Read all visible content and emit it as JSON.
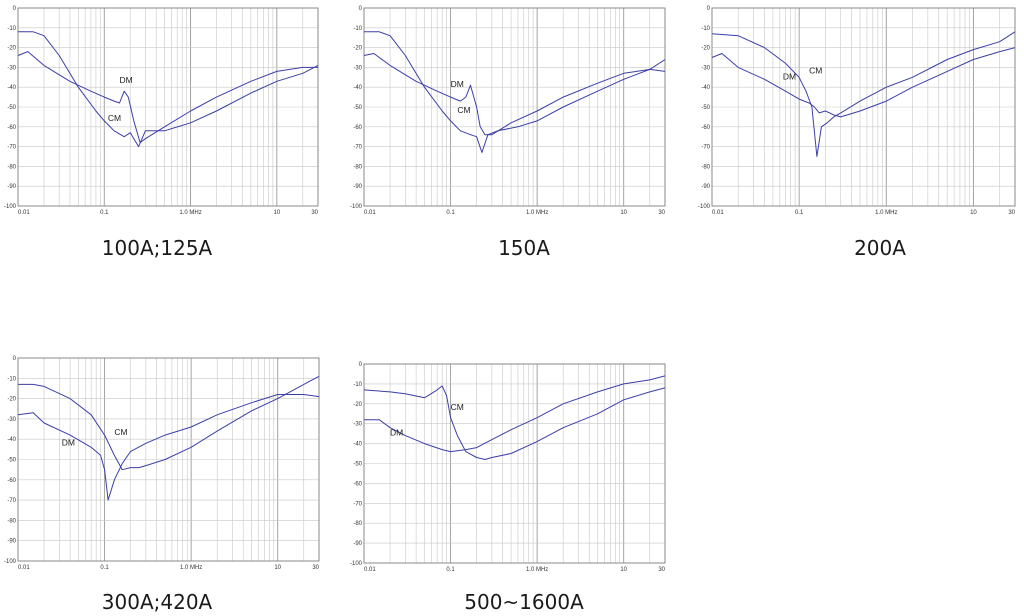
{
  "colors": {
    "curve": "#3b3fa8",
    "grid": "#c8c8c8",
    "frame": "#8a8a8a"
  },
  "chart_data": [
    {
      "type": "line",
      "caption": "100A;125A",
      "x_scale": "log",
      "xlim": [
        0.01,
        30
      ],
      "ylim": [
        -100,
        0
      ],
      "x_tick_labels": [
        "0.01",
        "0.1",
        "1.0 MHz",
        "10",
        "30"
      ],
      "y_tick_labels": [
        "0",
        "-10",
        "-20",
        "-30",
        "-40",
        "-50",
        "-60",
        "-70",
        "-80",
        "-90",
        "-100"
      ],
      "grid": true,
      "series": [
        {
          "name": "DM",
          "x": [
            0.01,
            0.013,
            0.02,
            0.04,
            0.07,
            0.1,
            0.13,
            0.15,
            0.17,
            0.19,
            0.22,
            0.26,
            0.3,
            0.5,
            1,
            2,
            5,
            10,
            20,
            30
          ],
          "y": [
            -24,
            -22,
            -29,
            -37,
            -42,
            -45,
            -47,
            -48,
            -42,
            -45,
            -57,
            -68,
            -66,
            -60,
            -52,
            -45,
            -37,
            -32,
            -30,
            -30
          ]
        },
        {
          "name": "CM",
          "x": [
            0.01,
            0.015,
            0.02,
            0.03,
            0.05,
            0.08,
            0.1,
            0.13,
            0.17,
            0.2,
            0.25,
            0.3,
            0.5,
            1,
            2,
            5,
            10,
            20,
            30
          ],
          "y": [
            -12,
            -12,
            -14,
            -24,
            -40,
            -52,
            -57,
            -62,
            -65,
            -63,
            -70,
            -62,
            -62,
            -58,
            -52,
            -43,
            -37,
            -33,
            -29
          ]
        }
      ],
      "labels": [
        {
          "text": "DM",
          "x": 0.15,
          "y": -38
        },
        {
          "text": "CM",
          "x": 0.11,
          "y": -57
        }
      ]
    },
    {
      "type": "line",
      "caption": "150A",
      "x_scale": "log",
      "xlim": [
        0.01,
        30
      ],
      "ylim": [
        -100,
        0
      ],
      "x_tick_labels": [
        "0.01",
        "0.1",
        "1.0 MHz",
        "10",
        "30"
      ],
      "y_tick_labels": [
        "0",
        "-10",
        "-20",
        "-30",
        "-40",
        "-50",
        "-60",
        "-70",
        "-80",
        "-90",
        "-100"
      ],
      "grid": true,
      "series": [
        {
          "name": "DM",
          "x": [
            0.01,
            0.013,
            0.02,
            0.04,
            0.07,
            0.1,
            0.13,
            0.15,
            0.17,
            0.2,
            0.22,
            0.25,
            0.3,
            0.5,
            1,
            2,
            5,
            10,
            20,
            30
          ],
          "y": [
            -24,
            -23,
            -29,
            -37,
            -42,
            -45,
            -47,
            -45,
            -39,
            -50,
            -60,
            -64,
            -64,
            -58,
            -52,
            -45,
            -38,
            -33,
            -31,
            -32
          ]
        },
        {
          "name": "CM",
          "x": [
            0.01,
            0.015,
            0.02,
            0.03,
            0.05,
            0.08,
            0.1,
            0.13,
            0.17,
            0.2,
            0.23,
            0.27,
            0.35,
            0.6,
            1,
            2,
            5,
            10,
            20,
            30
          ],
          "y": [
            -12,
            -12,
            -14,
            -24,
            -40,
            -52,
            -57,
            -62,
            -64,
            -65,
            -73,
            -64,
            -62,
            -60,
            -57,
            -50,
            -42,
            -36,
            -31,
            -26
          ]
        }
      ],
      "labels": [
        {
          "text": "DM",
          "x": 0.1,
          "y": -40
        },
        {
          "text": "CM",
          "x": 0.12,
          "y": -53
        }
      ]
    },
    {
      "type": "line",
      "caption": "200A",
      "x_scale": "log",
      "xlim": [
        0.01,
        30
      ],
      "ylim": [
        -100,
        0
      ],
      "x_tick_labels": [
        "0.01",
        "0.1",
        "1.0 MHz",
        "10",
        "30"
      ],
      "y_tick_labels": [
        "0",
        "-10",
        "-20",
        "-30",
        "-40",
        "-50",
        "-60",
        "-70",
        "-80",
        "-90",
        "-100"
      ],
      "grid": true,
      "series": [
        {
          "name": "DM",
          "x": [
            0.01,
            0.013,
            0.02,
            0.04,
            0.07,
            0.1,
            0.13,
            0.15,
            0.17,
            0.2,
            0.25,
            0.3,
            0.5,
            1,
            2,
            5,
            10,
            20,
            30
          ],
          "y": [
            -25,
            -23,
            -30,
            -36,
            -42,
            -46,
            -48,
            -50,
            -53,
            -52,
            -54,
            -55,
            -52,
            -47,
            -40,
            -32,
            -26,
            -22,
            -20
          ]
        },
        {
          "name": "CM",
          "x": [
            0.01,
            0.02,
            0.04,
            0.07,
            0.1,
            0.12,
            0.14,
            0.16,
            0.18,
            0.21,
            0.25,
            0.3,
            0.5,
            1,
            2,
            5,
            10,
            20,
            30
          ],
          "y": [
            -13,
            -14,
            -20,
            -28,
            -35,
            -42,
            -50,
            -75,
            -60,
            -58,
            -55,
            -53,
            -47,
            -40,
            -35,
            -26,
            -21,
            -17,
            -12
          ]
        }
      ],
      "labels": [
        {
          "text": "DM",
          "x": 0.065,
          "y": -36
        },
        {
          "text": "CM",
          "x": 0.13,
          "y": -33
        }
      ]
    },
    {
      "type": "line",
      "caption": "300A;420A",
      "x_scale": "log",
      "xlim": [
        0.01,
        30
      ],
      "ylim": [
        -100,
        0
      ],
      "x_tick_labels": [
        "0.01",
        "0.1",
        "1.0 MHz",
        "10",
        "30"
      ],
      "y_tick_labels": [
        "0",
        "-10",
        "-20",
        "-30",
        "-40",
        "-50",
        "-60",
        "-70",
        "-80",
        "-90",
        "-100"
      ],
      "grid": true,
      "series": [
        {
          "name": "DM",
          "x": [
            0.01,
            0.015,
            0.02,
            0.04,
            0.07,
            0.09,
            0.1,
            0.11,
            0.13,
            0.16,
            0.2,
            0.3,
            0.5,
            1,
            2,
            5,
            10,
            20,
            30
          ],
          "y": [
            -28,
            -27,
            -32,
            -38,
            -44,
            -48,
            -55,
            -70,
            -60,
            -52,
            -46,
            -42,
            -38,
            -34,
            -28,
            -22,
            -18,
            -18,
            -19
          ]
        },
        {
          "name": "CM",
          "x": [
            0.01,
            0.015,
            0.02,
            0.04,
            0.07,
            0.1,
            0.13,
            0.16,
            0.2,
            0.25,
            0.3,
            0.5,
            1,
            2,
            5,
            10,
            20,
            30
          ],
          "y": [
            -13,
            -13,
            -14,
            -20,
            -28,
            -38,
            -48,
            -55,
            -54,
            -54,
            -53,
            -50,
            -44,
            -36,
            -26,
            -20,
            -13,
            -9
          ]
        }
      ],
      "labels": [
        {
          "text": "DM",
          "x": 0.032,
          "y": -43
        },
        {
          "text": "CM",
          "x": 0.13,
          "y": -38
        }
      ]
    },
    {
      "type": "line",
      "caption": "500~1600A",
      "x_scale": "log",
      "xlim": [
        0.01,
        30
      ],
      "ylim": [
        -100,
        0
      ],
      "x_tick_labels": [
        "0.01",
        "0.1",
        "1.0 MHz",
        "10",
        "30"
      ],
      "y_tick_labels": [
        "0",
        "-10",
        "-20",
        "-30",
        "-40",
        "-50",
        "-60",
        "-70",
        "-80",
        "-90",
        "-100"
      ],
      "grid": true,
      "series": [
        {
          "name": "DM",
          "x": [
            0.01,
            0.015,
            0.02,
            0.03,
            0.05,
            0.08,
            0.1,
            0.15,
            0.2,
            0.3,
            0.5,
            1,
            2,
            5,
            10,
            20,
            30
          ],
          "y": [
            -28,
            -28,
            -32,
            -36,
            -40,
            -43,
            -44,
            -43,
            -42,
            -38,
            -33,
            -27,
            -20,
            -14,
            -10,
            -8,
            -6
          ]
        },
        {
          "name": "CM",
          "x": [
            0.01,
            0.02,
            0.03,
            0.05,
            0.07,
            0.08,
            0.09,
            0.1,
            0.12,
            0.15,
            0.2,
            0.25,
            0.3,
            0.5,
            1,
            2,
            5,
            10,
            20,
            30
          ],
          "y": [
            -13,
            -14,
            -15,
            -17,
            -13,
            -11,
            -16,
            -27,
            -36,
            -44,
            -47,
            -48,
            -47,
            -45,
            -39,
            -32,
            -25,
            -18,
            -14,
            -12
          ]
        }
      ],
      "labels": [
        {
          "text": "DM",
          "x": 0.02,
          "y": -36
        },
        {
          "text": "CM",
          "x": 0.1,
          "y": -23
        }
      ]
    }
  ]
}
